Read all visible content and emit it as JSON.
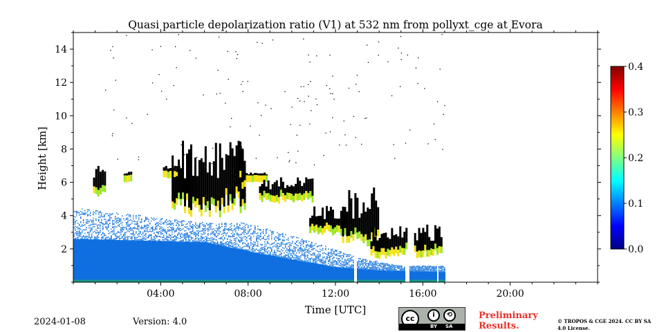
{
  "chart_data": {
    "type": "heatmap",
    "title": "Quasi particle depolarization ratio (V1) at 532 nm from pollyxt_cge at Evora",
    "xlabel": "Time [UTC]",
    "ylabel": "Height [km]",
    "xlim": [
      0,
      24
    ],
    "ylim": [
      0,
      15
    ],
    "x_ticks": [
      4,
      8,
      12,
      16,
      20
    ],
    "x_tick_labels": [
      "04:00",
      "08:00",
      "12:00",
      "16:00",
      "20:00"
    ],
    "y_ticks": [
      2,
      4,
      6,
      8,
      10,
      12,
      14
    ],
    "y_tick_labels": [
      "2",
      "4",
      "6",
      "8",
      "10",
      "12",
      "14"
    ],
    "colorbar": {
      "range": [
        0.0,
        0.4
      ],
      "ticks": [
        0.0,
        0.1,
        0.2,
        0.3,
        0.4
      ],
      "tick_labels": [
        "0.0",
        "0.1",
        "0.2",
        "0.3",
        "0.4"
      ],
      "colormap": "jet"
    },
    "data_extent_hours": [
      0,
      17.0
    ],
    "boundary_layer_top_km": [
      [
        0,
        4.5
      ],
      [
        2,
        4.2
      ],
      [
        4,
        3.9
      ],
      [
        6,
        3.6
      ],
      [
        8,
        3.6
      ],
      [
        10,
        2.8
      ],
      [
        12,
        2.0
      ],
      [
        13,
        1.5
      ],
      [
        15,
        1.0
      ],
      [
        17,
        1.0
      ]
    ],
    "dense_layer_top_km": [
      [
        0,
        2.6
      ],
      [
        3,
        2.5
      ],
      [
        6,
        2.4
      ],
      [
        9,
        1.6
      ],
      [
        12,
        0.9
      ],
      [
        14,
        0.7
      ],
      [
        17,
        0.6
      ]
    ],
    "cloud_layers": [
      {
        "t": [
          0.9,
          1.5
        ],
        "base_km": 5.5,
        "top_km": 7.2
      },
      {
        "t": [
          2.3,
          2.7
        ],
        "base_km": 6.4,
        "top_km": 6.7
      },
      {
        "t": [
          4.1,
          5.0
        ],
        "base_km": 6.6,
        "top_km": 7.0
      },
      {
        "t": [
          4.5,
          7.9
        ],
        "base_km": 4.3,
        "top_km": 8.5
      },
      {
        "t": [
          7.6,
          7.9
        ],
        "base_km": 6.0,
        "top_km": 9.1
      },
      {
        "t": [
          7.9,
          8.9
        ],
        "base_km": 6.4,
        "top_km": 6.6
      },
      {
        "t": [
          8.5,
          11.0
        ],
        "base_km": 5.1,
        "top_km": 6.3
      },
      {
        "t": [
          10.8,
          12.5
        ],
        "base_km": 3.2,
        "top_km": 4.6
      },
      {
        "t": [
          12.3,
          14.0
        ],
        "base_km": 2.5,
        "top_km": 5.8
      },
      {
        "t": [
          13.6,
          15.3
        ],
        "base_km": 1.8,
        "top_km": 3.4
      },
      {
        "t": [
          15.6,
          16.9
        ],
        "base_km": 1.8,
        "top_km": 3.5
      }
    ],
    "gaps_hours": [
      [
        12.85,
        12.95
      ],
      [
        15.15,
        15.35
      ],
      [
        16.6,
        16.7
      ]
    ]
  },
  "footer": {
    "date": "2024-01-08",
    "version": "Version: 4.0",
    "license_badge": {
      "by": "BY",
      "sa": "SA",
      "cc": "cc"
    },
    "preliminary": "Preliminary Results.",
    "copyright": "© TROPOS & CGE 2024. CC BY SA 4.0 License."
  }
}
